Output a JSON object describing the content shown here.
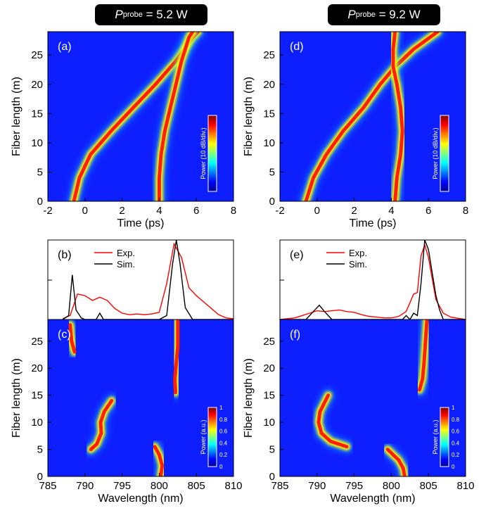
{
  "headers": [
    {
      "p_label": "P",
      "p_sub": "probe",
      "value_text": " = 5.2 W"
    },
    {
      "p_label": "P",
      "p_sub": "probe",
      "value_text": " = 9.2 W"
    }
  ],
  "chart_data": [
    {
      "panel": "(a)",
      "type": "heatmap",
      "xlabel": "Time (ps)",
      "ylabel": "Fiber length (m)",
      "xlim": [
        -2,
        8
      ],
      "ylim": [
        0,
        29
      ],
      "xticks": [
        -2,
        0,
        2,
        4,
        6,
        8
      ],
      "yticks": [
        0,
        5,
        10,
        15,
        20,
        25
      ],
      "colorbar_label": "Power (10 dB/div.)",
      "traces": [
        {
          "name": "pulse-1",
          "points": [
            [
              -0.6,
              0
            ],
            [
              -0.3,
              4
            ],
            [
              0.3,
              8
            ],
            [
              1.4,
              12
            ],
            [
              2.6,
              16
            ],
            [
              3.8,
              20
            ],
            [
              4.9,
              24
            ],
            [
              5.8,
              28
            ],
            [
              6.1,
              29
            ]
          ]
        },
        {
          "name": "pulse-2",
          "points": [
            [
              4.0,
              0
            ],
            [
              4.0,
              4
            ],
            [
              4.1,
              8
            ],
            [
              4.3,
              12
            ],
            [
              4.6,
              16
            ],
            [
              4.9,
              20
            ],
            [
              5.2,
              24
            ],
            [
              5.6,
              28
            ],
            [
              5.8,
              29
            ]
          ]
        }
      ]
    },
    {
      "panel": "(d)",
      "type": "heatmap",
      "xlabel": "Time (ps)",
      "ylabel": "Fiber length (m)",
      "xlim": [
        -2,
        8
      ],
      "ylim": [
        0,
        29
      ],
      "xticks": [
        -2,
        0,
        2,
        4,
        6,
        8
      ],
      "yticks": [
        0,
        5,
        10,
        15,
        20,
        25
      ],
      "colorbar_label": "Power (10 dB/div.)",
      "traces": [
        {
          "name": "pulse-1",
          "points": [
            [
              -0.6,
              0
            ],
            [
              -0.2,
              4
            ],
            [
              0.5,
              8
            ],
            [
              1.4,
              12
            ],
            [
              2.5,
              16
            ],
            [
              3.4,
              20
            ],
            [
              4.2,
              23
            ],
            [
              5.2,
              26
            ],
            [
              6.5,
              29
            ]
          ]
        },
        {
          "name": "pulse-2",
          "points": [
            [
              4.2,
              0
            ],
            [
              4.3,
              4
            ],
            [
              4.5,
              8
            ],
            [
              4.6,
              12
            ],
            [
              4.5,
              16
            ],
            [
              4.3,
              20
            ],
            [
              4.1,
              23
            ],
            [
              4.1,
              26
            ],
            [
              4.2,
              29
            ]
          ]
        }
      ]
    },
    {
      "panel": "(b)",
      "type": "line",
      "xlim": [
        785,
        810
      ],
      "ylim": [
        0,
        1
      ],
      "legend": [
        "Exp.",
        "Sim."
      ],
      "series": [
        {
          "name": "Exp.",
          "color": "#ff0000",
          "x": [
            787,
            788,
            789,
            790,
            791,
            792,
            793,
            794,
            795,
            796,
            797,
            798,
            799,
            800,
            801,
            802,
            803,
            804,
            805,
            806,
            807,
            808,
            809,
            810
          ],
          "y": [
            0.01,
            0.05,
            0.32,
            0.3,
            0.24,
            0.28,
            0.24,
            0.14,
            0.08,
            0.06,
            0.07,
            0.06,
            0.07,
            0.09,
            0.45,
            0.95,
            0.78,
            0.4,
            0.3,
            0.22,
            0.14,
            0.06,
            0.02,
            0.01
          ]
        },
        {
          "name": "Sim.",
          "color": "#000000",
          "x": [
            787,
            787.8,
            788.3,
            788.8,
            789.5,
            790,
            791.5,
            792,
            792.5,
            800,
            801,
            801.8,
            802.3,
            802.8,
            803.5,
            804.5,
            810
          ],
          "y": [
            0.0,
            0.05,
            0.56,
            0.12,
            0.02,
            0.0,
            0.0,
            0.08,
            0.0,
            0.0,
            0.05,
            0.7,
            1.0,
            0.7,
            0.15,
            0.0,
            0.0
          ]
        }
      ]
    },
    {
      "panel": "(e)",
      "type": "line",
      "xlim": [
        785,
        810
      ],
      "ylim": [
        0,
        1
      ],
      "legend": [
        "Exp.",
        "Sim."
      ],
      "series": [
        {
          "name": "Exp.",
          "color": "#ff0000",
          "x": [
            785,
            787,
            788,
            789,
            790,
            791,
            792,
            793,
            794,
            795,
            796,
            797,
            798,
            799,
            800,
            801,
            802,
            803,
            803.5,
            804,
            804.5,
            805,
            806,
            807,
            808,
            810
          ],
          "y": [
            0.0,
            0.02,
            0.05,
            0.08,
            0.11,
            0.1,
            0.11,
            0.12,
            0.1,
            0.09,
            0.06,
            0.04,
            0.03,
            0.02,
            0.02,
            0.04,
            0.1,
            0.32,
            0.34,
            0.8,
            0.94,
            0.78,
            0.25,
            0.08,
            0.03,
            0.0
          ]
        },
        {
          "name": "Sim.",
          "color": "#000000",
          "x": [
            785,
            788.5,
            789.5,
            790.3,
            791,
            792,
            801.5,
            802,
            802.5,
            803,
            803.5,
            804,
            804.5,
            805,
            806,
            806.5,
            807,
            810
          ],
          "y": [
            0.0,
            0.0,
            0.1,
            0.18,
            0.1,
            0.0,
            0.0,
            0.05,
            0.0,
            0.08,
            0.05,
            0.45,
            1.0,
            0.88,
            0.3,
            0.12,
            0.0,
            0.0
          ]
        }
      ]
    },
    {
      "panel": "(c)",
      "type": "heatmap",
      "xlabel": "Wavelength (nm)",
      "ylabel": "Fiber length (m)",
      "xlim": [
        785,
        810
      ],
      "ylim": [
        0,
        29
      ],
      "xticks": [
        785,
        790,
        795,
        800,
        805,
        810
      ],
      "yticks": [
        0,
        5,
        10,
        15,
        20,
        25
      ],
      "colorbar_label": "Power (a.u.)",
      "colorbar_ticks": [
        "0",
        "0.2",
        "0.4",
        "0.6",
        "0.8",
        "1"
      ],
      "traces": [
        {
          "name": "short-wave",
          "points": [
            [
              788.0,
              28
            ],
            [
              788.2,
              25
            ],
            [
              788.6,
              23
            ]
          ]
        },
        {
          "name": "middle",
          "points": [
            [
              793.6,
              14
            ],
            [
              792.6,
              12
            ],
            [
              792.1,
              10
            ],
            [
              792.2,
              8
            ],
            [
              791.6,
              6
            ],
            [
              790.8,
              5
            ]
          ]
        },
        {
          "name": "pump",
          "points": [
            [
              800.2,
              0
            ],
            [
              800.4,
              2
            ],
            [
              800.0,
              4
            ],
            [
              799.4,
              5.5
            ]
          ]
        },
        {
          "name": "long-wave",
          "points": [
            [
              802.2,
              15.5
            ],
            [
              802.1,
              18
            ],
            [
              802.3,
              21
            ],
            [
              802.5,
              24
            ],
            [
              802.5,
              29
            ]
          ]
        }
      ]
    },
    {
      "panel": "(f)",
      "type": "heatmap",
      "xlabel": "Wavelength (nm)",
      "ylabel": "Fiber length (m)",
      "xlim": [
        785,
        810
      ],
      "ylim": [
        0,
        29
      ],
      "xticks": [
        785,
        790,
        795,
        800,
        805,
        810
      ],
      "yticks": [
        0,
        5,
        10,
        15,
        20,
        25
      ],
      "colorbar_label": "Power (a.u.)",
      "colorbar_ticks": [
        "0",
        "0.2",
        "0.4",
        "0.6",
        "0.8",
        "1"
      ],
      "traces": [
        {
          "name": "short-wave",
          "points": [
            [
              791.5,
              15
            ],
            [
              790.4,
              12
            ],
            [
              790.2,
              10
            ],
            [
              790.6,
              8
            ],
            [
              791.8,
              6.5
            ],
            [
              794.0,
              5.5
            ]
          ]
        },
        {
          "name": "pump",
          "points": [
            [
              799.5,
              5
            ],
            [
              801.0,
              3
            ],
            [
              801.6,
              1.5
            ],
            [
              801.8,
              0
            ]
          ]
        },
        {
          "name": "long-wave",
          "points": [
            [
              803.8,
              16
            ],
            [
              804.2,
              18
            ],
            [
              804.4,
              21
            ],
            [
              804.6,
              25
            ],
            [
              804.8,
              29
            ]
          ]
        }
      ]
    }
  ]
}
